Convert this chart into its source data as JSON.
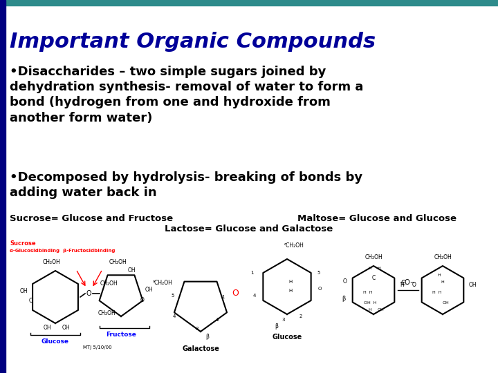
{
  "title": "Important Organic Compounds",
  "title_color": "#000099",
  "title_fontsize": 22,
  "title_style": "italic",
  "title_weight": "bold",
  "background_color": "#ffffff",
  "top_bar_color": "#2E8B8B",
  "left_bar_color": "#000080",
  "bullet1_line1": "•Disaccharides – two simple sugars joined by",
  "bullet1_line2": "dehydration synthesis- removal of water to form a",
  "bullet1_line3": "bond (hydrogen from one and hydroxide from",
  "bullet1_line4": "another form water)",
  "bullet2_line1": "•Decomposed by hydrolysis- breaking of bonds by",
  "bullet2_line2": "adding water back in",
  "body_fontsize": 13,
  "body_color": "#000000",
  "caption_left": "Sucrose= Glucose and Fructose",
  "caption_right": "Maltose= Glucose and Glucose",
  "caption_center": "Lactose= Glucose and Galactose",
  "caption_fontsize": 9.5,
  "caption_color": "#000000",
  "caption_weight": "bold"
}
